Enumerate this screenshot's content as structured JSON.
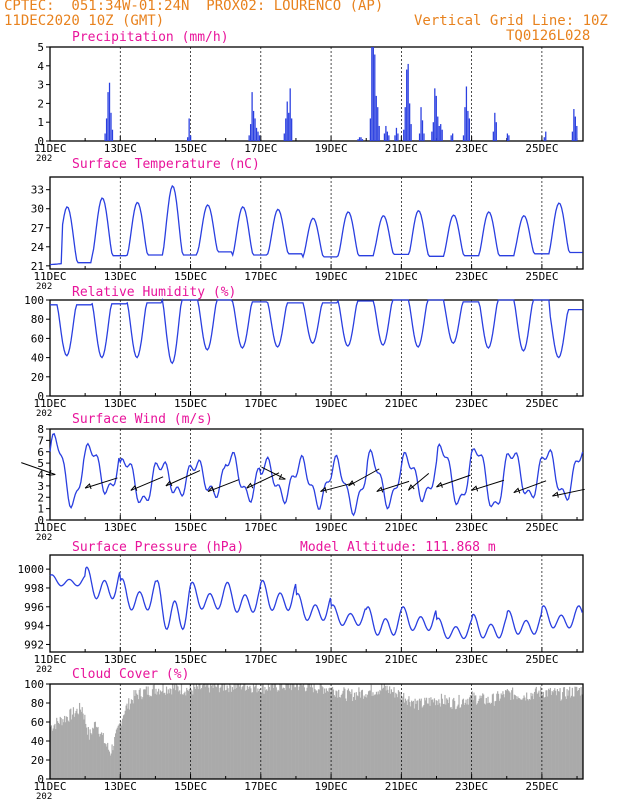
{
  "header": {
    "line1": "CPTEC:  051:34W-01:24N  PROX02: LOURENCO (AP)",
    "date": "11DEC2020 10Z (GMT)",
    "grid_note": "Vertical Grid Line: 10Z",
    "code": "TQ0126L028"
  },
  "colors": {
    "header": "#e8821e",
    "title": "#e8149b",
    "series": "#2a3fe0",
    "cloud": "#aaaaaa",
    "axis": "#000000"
  },
  "x_axis": {
    "tick_labels": [
      "11DEC",
      "13DEC",
      "15DEC",
      "17DEC",
      "19DEC",
      "21DEC",
      "23DEC",
      "25DEC"
    ],
    "tick_days": [
      0,
      2,
      4,
      6,
      8,
      10,
      12,
      14
    ],
    "year_fragment": "202",
    "xlim_days": [
      0,
      15.17
    ]
  },
  "chart_data": [
    {
      "type": "bar",
      "title": "Precipitation (mm/h)",
      "ylim": [
        0,
        5
      ],
      "yticks": [
        0,
        1,
        2,
        3,
        4,
        5
      ],
      "bursts": [
        {
          "day": 1.55,
          "values": [
            0.4,
            1.2,
            2.6,
            3.1,
            1.5,
            0.6
          ]
        },
        {
          "day": 3.9,
          "values": [
            0.2,
            1.2,
            0.3
          ]
        },
        {
          "day": 5.65,
          "values": [
            0.3,
            0.9,
            2.6,
            1.6,
            1.2,
            0.7,
            0.5,
            0.3
          ]
        },
        {
          "day": 6.65,
          "values": [
            0.4,
            1.2,
            2.1,
            1.5,
            2.8,
            1.2
          ]
        },
        {
          "day": 8.75,
          "values": [
            0.1,
            0.2,
            0.2,
            0.1
          ]
        },
        {
          "day": 9.1,
          "values": [
            1.2,
            5.0,
            5.0,
            4.6,
            2.4,
            1.8,
            0.8
          ]
        },
        {
          "day": 9.5,
          "values": [
            0.4,
            0.8,
            0.5,
            0.3
          ]
        },
        {
          "day": 9.8,
          "values": [
            0.3,
            0.7,
            0.4
          ]
        },
        {
          "day": 10.05,
          "values": [
            0.6,
            1.8,
            3.8,
            4.1,
            2.0,
            0.9
          ]
        },
        {
          "day": 10.5,
          "values": [
            0.4,
            1.8,
            1.1,
            0.4
          ]
        },
        {
          "day": 10.85,
          "values": [
            0.5,
            1.0,
            2.8,
            2.4,
            1.3,
            0.8,
            0.9,
            0.6
          ]
        },
        {
          "day": 11.4,
          "values": [
            0.3,
            0.4
          ]
        },
        {
          "day": 11.75,
          "values": [
            0.3,
            1.8,
            2.9,
            1.6,
            1.2
          ]
        },
        {
          "day": 12.6,
          "values": [
            0.5,
            1.5,
            1.0
          ]
        },
        {
          "day": 13.0,
          "values": [
            0.4,
            0.3
          ]
        },
        {
          "day": 14.05,
          "values": [
            0.2,
            0.5
          ]
        },
        {
          "day": 14.85,
          "values": [
            0.5,
            1.7,
            1.3,
            0.8
          ]
        }
      ]
    },
    {
      "type": "line",
      "title": "Surface Temperature (nC)",
      "ylim": [
        20.5,
        35
      ],
      "yticks": [
        21,
        24,
        27,
        30,
        33
      ],
      "base": [
        21.2,
        21.5,
        22.6,
        22.7,
        22.7,
        23.2,
        22.7,
        22.9,
        22.4,
        22.6,
        22.8,
        22.5,
        22.6,
        22.6,
        22.9,
        23.1
      ],
      "peak": [
        30.3,
        31.7,
        31.0,
        33.6,
        30.6,
        30.3,
        29.9,
        28.5,
        29.5,
        28.9,
        29.7,
        29.0,
        29.5,
        28.9,
        30.9,
        30.6
      ],
      "day_phase": 0.2
    },
    {
      "type": "line",
      "title": "Relative Humidity (%)",
      "ylim": [
        0,
        100
      ],
      "yticks": [
        0,
        20,
        40,
        60,
        80,
        100
      ],
      "min": [
        42,
        40,
        40,
        34,
        48,
        50,
        51,
        55,
        52,
        53,
        51,
        55,
        50,
        47,
        40
      ],
      "max": [
        98,
        95,
        96,
        97,
        100,
        100,
        98,
        97,
        97,
        99,
        100,
        100,
        98,
        100,
        100,
        90
      ],
      "day_phase": 0.2
    },
    {
      "type": "line",
      "title": "Surface Wind (m/s)",
      "ylim": [
        0,
        8
      ],
      "yticks": [
        0,
        1,
        2,
        3,
        4,
        5,
        6,
        7,
        8
      ],
      "high": [
        7.2,
        6.4,
        5.3,
        5.0,
        5.0,
        5.6,
        5.0,
        5.1,
        5.1,
        5.6,
        5.5,
        6.4,
        6.3,
        6.0,
        6.0
      ],
      "low": [
        1.4,
        2.5,
        1.5,
        2.3,
        2.3,
        2.0,
        2.0,
        1.5,
        1.0,
        1.5,
        2.0,
        1.5,
        1.0,
        2.0,
        2.0
      ],
      "arrows": [
        {
          "day": 0.15,
          "speed": 4.0,
          "dx": -1.0,
          "dy": 0.35
        },
        {
          "day": 1.0,
          "speed": 2.8,
          "dx": 0.95,
          "dy": 0.3
        },
        {
          "day": 2.3,
          "speed": 2.6,
          "dx": 0.95,
          "dy": 0.4
        },
        {
          "day": 3.3,
          "speed": 3.0,
          "dx": 1.0,
          "dy": 0.45
        },
        {
          "day": 4.5,
          "speed": 2.5,
          "dx": 0.9,
          "dy": 0.35
        },
        {
          "day": 5.6,
          "speed": 2.8,
          "dx": 0.95,
          "dy": 0.45
        },
        {
          "day": 6.7,
          "speed": 3.6,
          "dx": -0.7,
          "dy": 0.35
        },
        {
          "day": 7.7,
          "speed": 2.5,
          "dx": 0.95,
          "dy": 0.25
        },
        {
          "day": 8.5,
          "speed": 3.0,
          "dx": 0.9,
          "dy": 0.5
        },
        {
          "day": 9.3,
          "speed": 2.5,
          "dx": 0.95,
          "dy": 0.3
        },
        {
          "day": 10.2,
          "speed": 2.6,
          "dx": 0.6,
          "dy": 0.5
        },
        {
          "day": 11.0,
          "speed": 2.9,
          "dx": 1.0,
          "dy": 0.35
        },
        {
          "day": 12.0,
          "speed": 2.6,
          "dx": 0.95,
          "dy": 0.3
        },
        {
          "day": 13.2,
          "speed": 2.4,
          "dx": 0.95,
          "dy": 0.35
        },
        {
          "day": 14.3,
          "speed": 2.1,
          "dx": 0.95,
          "dy": 0.2
        }
      ]
    },
    {
      "type": "line",
      "title": "Surface Pressure (hPa)",
      "subtitle": "Model Altitude: 111.868 m",
      "ylim": [
        991.2,
        1001.5
      ],
      "yticks": [
        992,
        994,
        996,
        998,
        1000
      ],
      "peaks": [
        999.4,
        1000.2,
        999.0,
        998.8,
        998.6,
        998.6,
        998.8,
        997.4,
        996.2,
        996.0,
        996.0,
        994.8,
        995.2,
        995.6,
        996.1
      ],
      "troughs": [
        998.0,
        996.2,
        995.0,
        992.6,
        995.2,
        994.8,
        995.0,
        994.0,
        993.6,
        992.4,
        993.0,
        992.2,
        992.2,
        992.6,
        993.3
      ],
      "mid": [
        996.6,
        996.6,
        996.8,
        996.8,
        995.8,
        995.8,
        995.0,
        994.0,
        993.6,
        994.0,
        994.6,
        993.4,
        993.2,
        993.2,
        993.0
      ]
    },
    {
      "type": "area",
      "title": "Cloud Cover (%)",
      "ylim": [
        0,
        100
      ],
      "yticks": [
        0,
        20,
        40,
        60,
        80,
        100
      ],
      "profile": [
        [
          0.0,
          55
        ],
        [
          0.3,
          62
        ],
        [
          0.6,
          68
        ],
        [
          0.9,
          75
        ],
        [
          1.1,
          45
        ],
        [
          1.3,
          60
        ],
        [
          1.5,
          42
        ],
        [
          1.7,
          28
        ],
        [
          1.9,
          48
        ],
        [
          2.1,
          72
        ],
        [
          2.4,
          88
        ],
        [
          2.7,
          92
        ],
        [
          3.0,
          95
        ],
        [
          3.5,
          96
        ],
        [
          4.0,
          94
        ],
        [
          4.5,
          97
        ],
        [
          5.0,
          98
        ],
        [
          5.5,
          99
        ],
        [
          6.0,
          96
        ],
        [
          6.5,
          98
        ],
        [
          7.0,
          99
        ],
        [
          7.5,
          97
        ],
        [
          8.0,
          95
        ],
        [
          8.5,
          88
        ],
        [
          9.0,
          92
        ],
        [
          9.5,
          96
        ],
        [
          10.0,
          88
        ],
        [
          10.5,
          78
        ],
        [
          11.0,
          84
        ],
        [
          11.5,
          80
        ],
        [
          12.0,
          86
        ],
        [
          12.5,
          82
        ],
        [
          13.0,
          90
        ],
        [
          13.5,
          88
        ],
        [
          14.0,
          92
        ],
        [
          14.5,
          89
        ],
        [
          15.0,
          93
        ],
        [
          15.17,
          94
        ]
      ]
    }
  ]
}
